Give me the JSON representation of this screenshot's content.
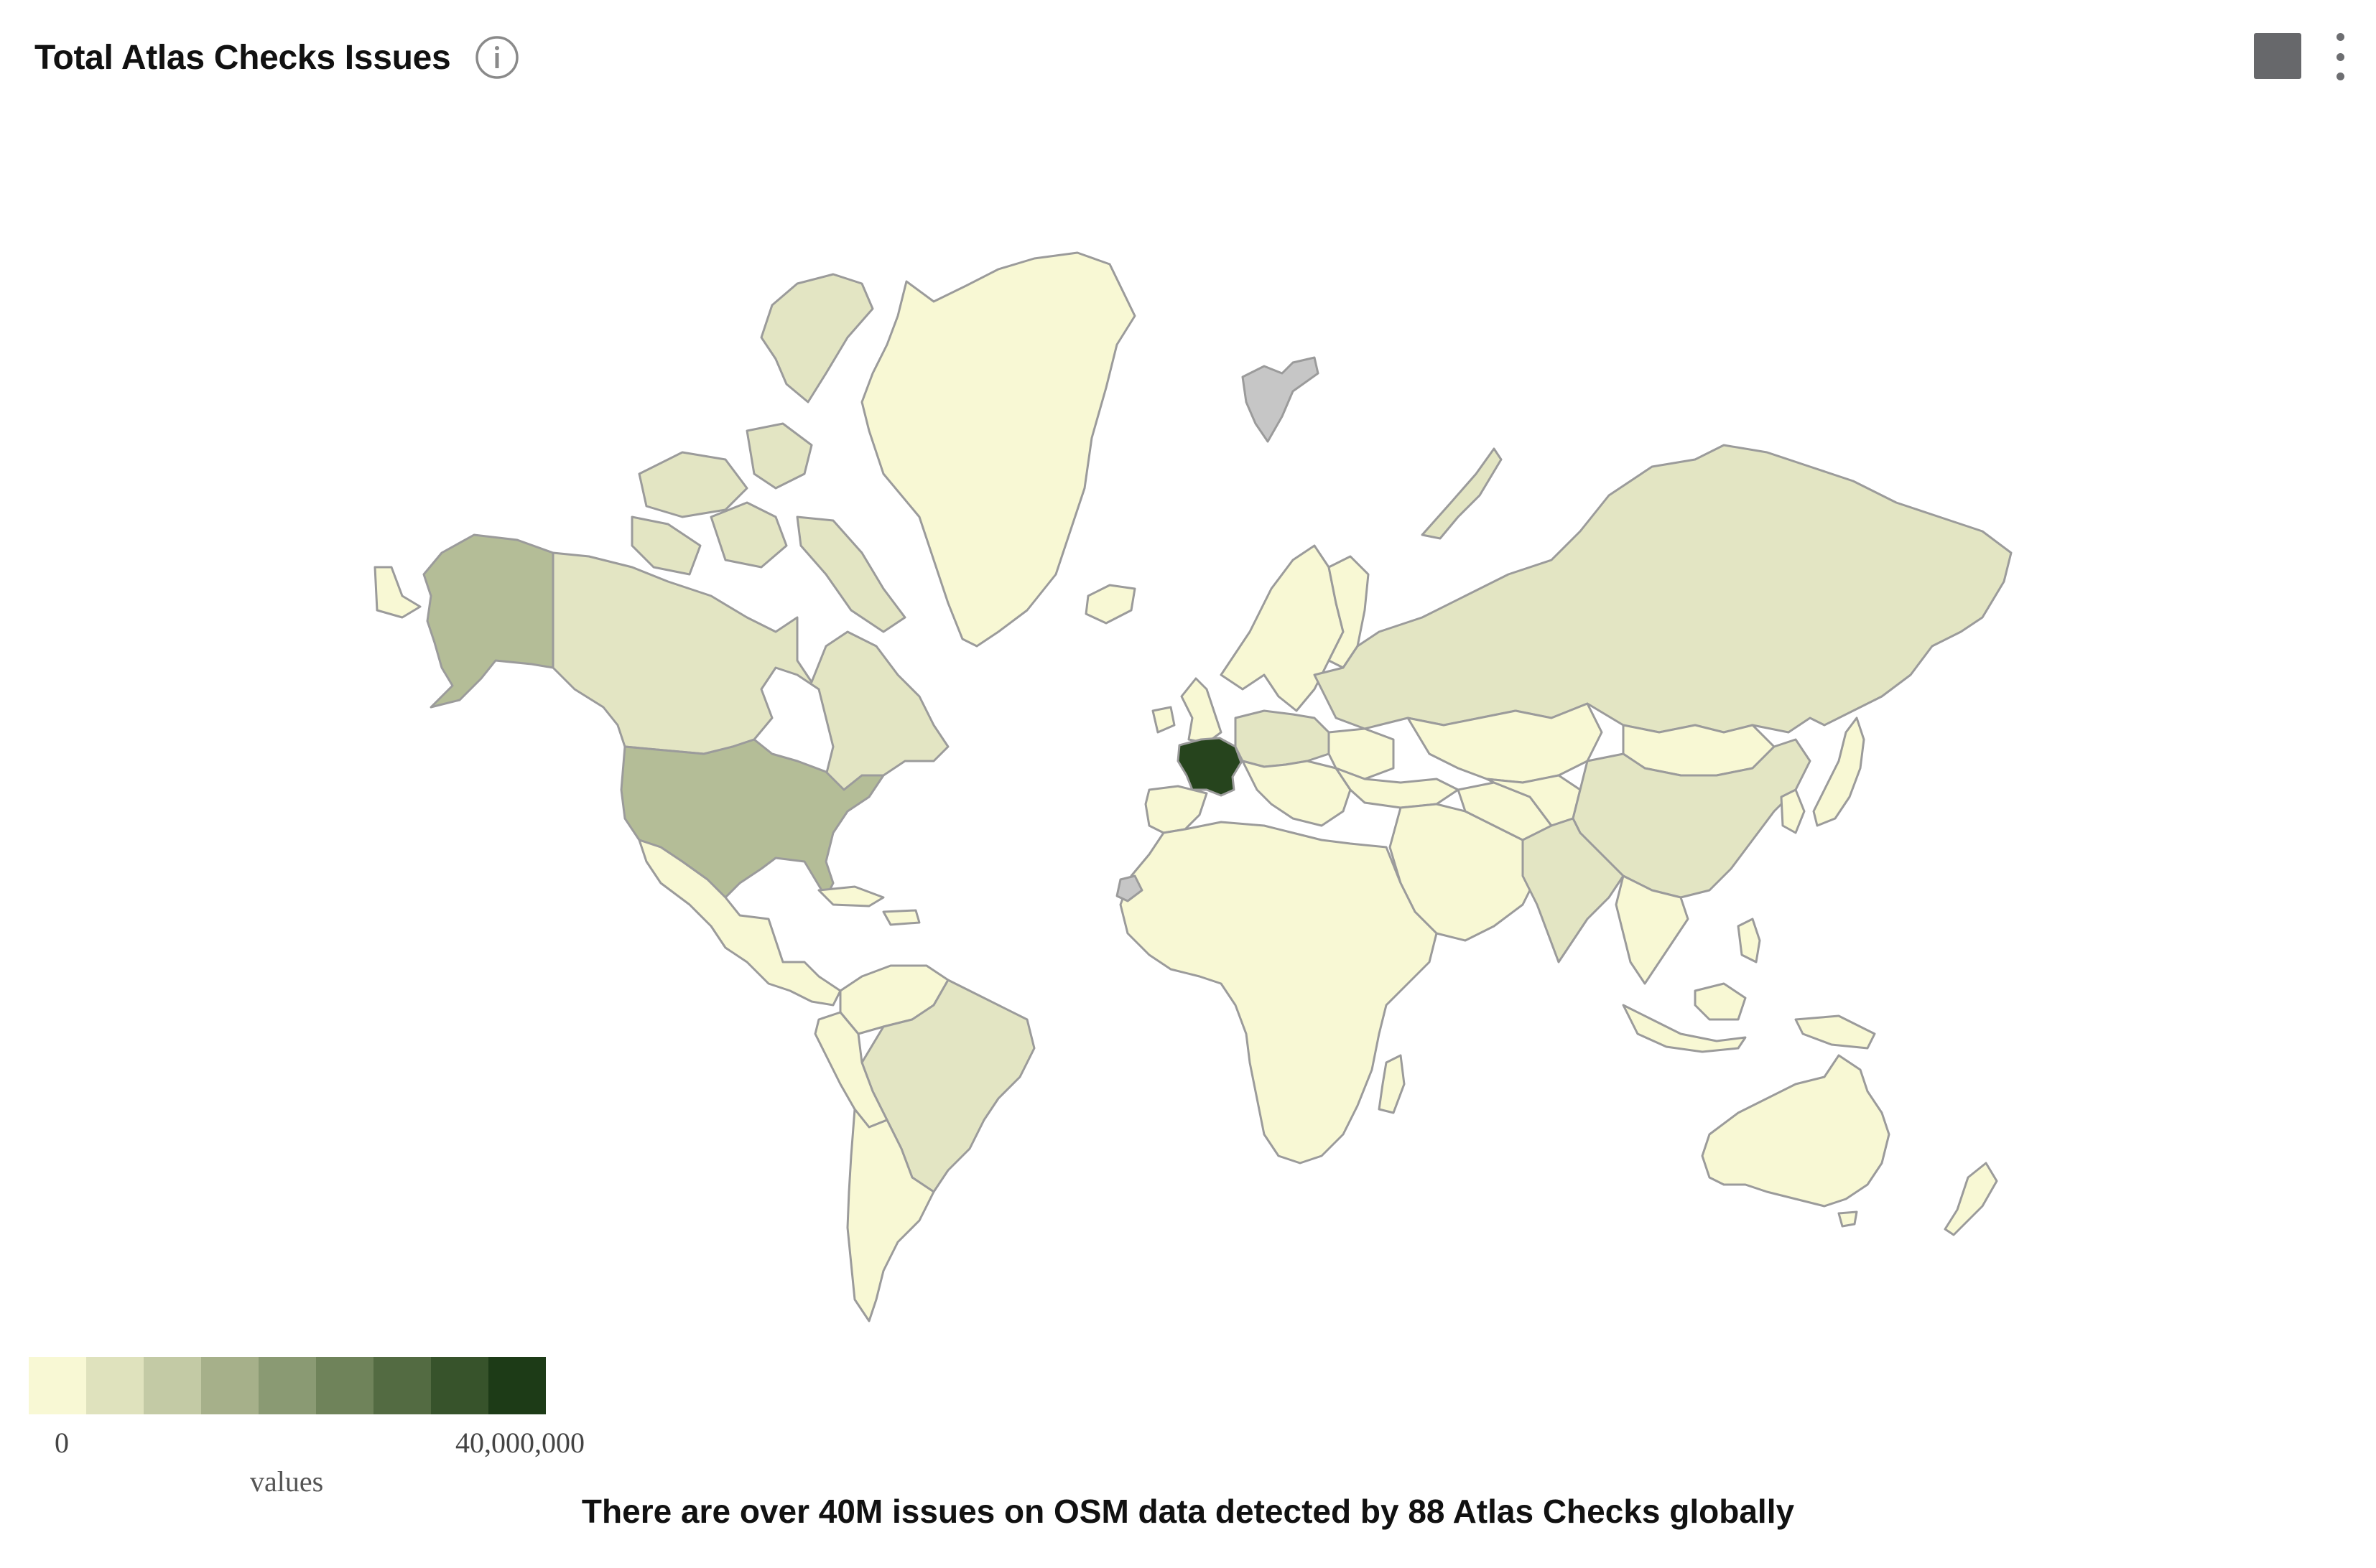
{
  "header": {
    "title": "Total Atlas Checks Issues",
    "info_icon": "info-circle-icon",
    "square_button_icon": "square-icon",
    "menu_icon": "vertical-dots-icon"
  },
  "legend": {
    "min_label": "0",
    "max_label": "40,000,000",
    "title": "values",
    "colors": [
      "#f8f8d4",
      "#dfe2bd",
      "#c3caa5",
      "#a6b08a",
      "#8a9a73",
      "#6f835a",
      "#536b42",
      "#37532b",
      "#1d3b17"
    ]
  },
  "map": {
    "type": "choropleth",
    "projection": "mercator",
    "border_color": "#9b9b9b",
    "no_data_color": "#c6c6c6",
    "values_by_region": {
      "France": "very-high",
      "United States": "medium",
      "Alaska (US)": "medium",
      "Canada": "low",
      "Russia": "low",
      "Germany": "low",
      "Poland": "low",
      "Brazil": "low",
      "China": "low",
      "India": "low",
      "Greenland": "minimal",
      "Africa": "minimal",
      "Australia": "minimal"
    }
  },
  "footer": {
    "caption": "There are over 40M issues on OSM data detected by 88 Atlas Checks globally"
  }
}
